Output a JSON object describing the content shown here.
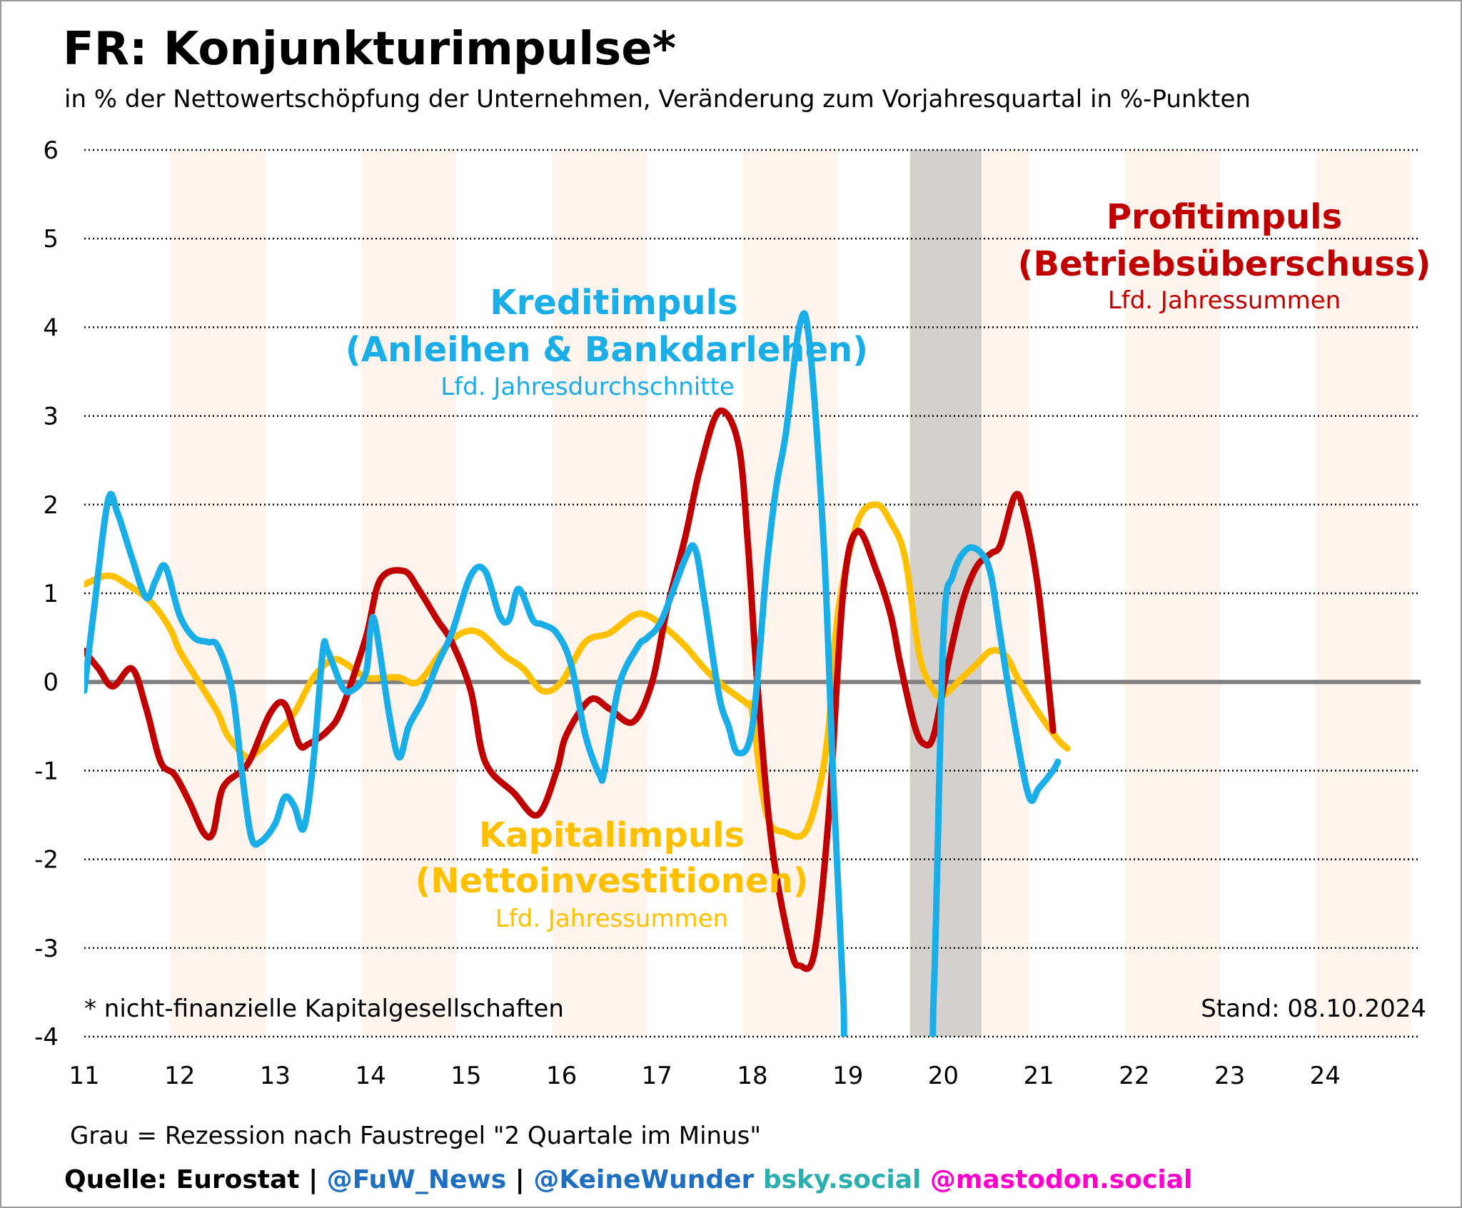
{
  "title": "FR: Konjunkturimpulse*",
  "subtitle": "in % der Nettowertschöpfung der Unternehmen, Veränderung zum Vorjahresquartal in %-Punkten",
  "footnote": "* nicht-finanzielle Kapitalgesellschaften",
  "stand": "Stand: 08.10.2024",
  "recession_note": "Grau = Rezession nach Faustregel \"2 Quartale im Minus\"",
  "source": {
    "quelle": "Quelle: Eurostat",
    "sep1": " | ",
    "fuw": "@FuW_News",
    "sep2": " | ",
    "keinewunder": "@KeineWunder",
    "bsky": " bsky.social",
    "mastodon": " @mastodon.social"
  },
  "colors": {
    "kredit": "#1AAEE8",
    "profit": "#C00000",
    "kapital": "#FFC000",
    "recession": "#D3D0CE",
    "band": "#FDF4EE",
    "zero": "#808080",
    "fuw": "#1F6FC0",
    "keinewunder": "#1F6FC0",
    "bsky": "#2AAEAE",
    "mastodon": "#FF00CC"
  },
  "labels": {
    "kredit": [
      "Kreditimpuls",
      "(Anleihen & Bankdarlehen)",
      "Lfd. Jahresdurchschnitte"
    ],
    "profit": [
      "Profitimpuls",
      "(Betriebsüberschuss)",
      "Lfd. Jahressummen"
    ],
    "kapital": [
      "Kapitalimpuls",
      "(Nettoinvestitionen)",
      "Lfd. Jahressummen"
    ]
  },
  "chart_data": {
    "type": "line",
    "xlim": [
      2011.0,
      2025.0
    ],
    "ylim": [
      -4,
      6
    ],
    "y_ticks": [
      6,
      5,
      4,
      3,
      2,
      1,
      0,
      -1,
      -2,
      -3,
      -4
    ],
    "x_ticks": [
      "11",
      "12",
      "13",
      "14",
      "15",
      "16",
      "17",
      "18",
      "19",
      "20",
      "21",
      "22",
      "23",
      "24"
    ],
    "grid": "horizontal dotted",
    "background_bands": [
      [
        2011.9,
        2012.9
      ],
      [
        2013.9,
        2014.9
      ],
      [
        2015.9,
        2016.9
      ],
      [
        2017.9,
        2018.9
      ],
      [
        2020.4,
        2020.9
      ],
      [
        2021.9,
        2022.9
      ],
      [
        2023.9,
        2024.9
      ]
    ],
    "recession": [
      2019.65,
      2020.4
    ],
    "series": [
      {
        "name": "Kreditimpuls",
        "key": "kredit",
        "points": [
          [
            2011.0,
            -0.1
          ],
          [
            2011.1,
            0.8
          ],
          [
            2011.25,
            2.05
          ],
          [
            2011.35,
            1.9
          ],
          [
            2011.5,
            1.4
          ],
          [
            2011.65,
            0.95
          ],
          [
            2011.75,
            1.15
          ],
          [
            2011.85,
            1.3
          ],
          [
            2012.0,
            0.75
          ],
          [
            2012.15,
            0.5
          ],
          [
            2012.3,
            0.45
          ],
          [
            2012.4,
            0.4
          ],
          [
            2012.55,
            -0.1
          ],
          [
            2012.65,
            -1.0
          ],
          [
            2012.75,
            -1.75
          ],
          [
            2012.85,
            -1.8
          ],
          [
            2013.0,
            -1.6
          ],
          [
            2013.1,
            -1.3
          ],
          [
            2013.2,
            -1.4
          ],
          [
            2013.3,
            -1.65
          ],
          [
            2013.4,
            -0.9
          ],
          [
            2013.5,
            0.35
          ],
          [
            2013.55,
            0.35
          ],
          [
            2013.7,
            -0.05
          ],
          [
            2013.8,
            -0.1
          ],
          [
            2013.95,
            0.1
          ],
          [
            2014.0,
            0.6
          ],
          [
            2014.05,
            0.65
          ],
          [
            2014.2,
            -0.4
          ],
          [
            2014.3,
            -0.85
          ],
          [
            2014.4,
            -0.5
          ],
          [
            2014.55,
            -0.2
          ],
          [
            2014.7,
            0.2
          ],
          [
            2014.85,
            0.55
          ],
          [
            2015.05,
            1.2
          ],
          [
            2015.2,
            1.25
          ],
          [
            2015.35,
            0.75
          ],
          [
            2015.45,
            0.7
          ],
          [
            2015.55,
            1.05
          ],
          [
            2015.7,
            0.7
          ],
          [
            2015.8,
            0.65
          ],
          [
            2015.95,
            0.55
          ],
          [
            2016.1,
            0.2
          ],
          [
            2016.25,
            -0.6
          ],
          [
            2016.4,
            -1.05
          ],
          [
            2016.45,
            -1.0
          ],
          [
            2016.6,
            -0.05
          ],
          [
            2016.8,
            0.4
          ],
          [
            2016.9,
            0.5
          ],
          [
            2017.05,
            0.7
          ],
          [
            2017.3,
            1.4
          ],
          [
            2017.4,
            1.5
          ],
          [
            2017.5,
            0.9
          ],
          [
            2017.65,
            -0.15
          ],
          [
            2017.75,
            -0.5
          ],
          [
            2017.85,
            -0.8
          ],
          [
            2018.0,
            -0.5
          ],
          [
            2018.15,
            1.3
          ],
          [
            2018.25,
            2.2
          ],
          [
            2018.35,
            2.8
          ],
          [
            2018.5,
            4.05
          ],
          [
            2018.6,
            3.8
          ],
          [
            2018.75,
            1.5
          ],
          [
            2018.85,
            -1.2
          ],
          [
            2018.95,
            -3.5
          ],
          [
            2019.05,
            -5.0
          ],
          [
            2019.8,
            -5.0
          ],
          [
            2019.9,
            -3.5
          ],
          [
            2020.0,
            0.5
          ],
          [
            2020.1,
            1.2
          ],
          [
            2020.25,
            1.5
          ],
          [
            2020.4,
            1.45
          ],
          [
            2020.5,
            1.2
          ],
          [
            2020.6,
            0.5
          ],
          [
            2020.75,
            -0.5
          ],
          [
            2020.9,
            -1.3
          ],
          [
            2021.0,
            -1.2
          ],
          [
            2021.15,
            -1.0
          ],
          [
            2021.2,
            -0.9
          ]
        ]
      },
      {
        "name": "Profitimpuls",
        "key": "profit",
        "points": [
          [
            2011.0,
            0.35
          ],
          [
            2011.15,
            0.15
          ],
          [
            2011.3,
            -0.05
          ],
          [
            2011.5,
            0.15
          ],
          [
            2011.65,
            -0.3
          ],
          [
            2011.8,
            -0.9
          ],
          [
            2011.95,
            -1.05
          ],
          [
            2012.1,
            -1.35
          ],
          [
            2012.25,
            -1.7
          ],
          [
            2012.35,
            -1.7
          ],
          [
            2012.45,
            -1.2
          ],
          [
            2012.65,
            -1.0
          ],
          [
            2012.75,
            -0.85
          ],
          [
            2012.95,
            -0.35
          ],
          [
            2013.1,
            -0.25
          ],
          [
            2013.25,
            -0.7
          ],
          [
            2013.35,
            -0.7
          ],
          [
            2013.55,
            -0.55
          ],
          [
            2013.7,
            -0.3
          ],
          [
            2013.95,
            0.5
          ],
          [
            2014.1,
            1.15
          ],
          [
            2014.35,
            1.25
          ],
          [
            2014.5,
            1.05
          ],
          [
            2014.7,
            0.7
          ],
          [
            2014.85,
            0.45
          ],
          [
            2015.05,
            -0.1
          ],
          [
            2015.2,
            -0.9
          ],
          [
            2015.5,
            -1.25
          ],
          [
            2015.75,
            -1.5
          ],
          [
            2015.95,
            -1.0
          ],
          [
            2016.05,
            -0.6
          ],
          [
            2016.3,
            -0.2
          ],
          [
            2016.5,
            -0.3
          ],
          [
            2016.75,
            -0.45
          ],
          [
            2016.95,
            0.0
          ],
          [
            2017.1,
            0.8
          ],
          [
            2017.3,
            1.65
          ],
          [
            2017.45,
            2.4
          ],
          [
            2017.65,
            3.05
          ],
          [
            2017.85,
            2.7
          ],
          [
            2017.95,
            1.6
          ],
          [
            2018.05,
            0.0
          ],
          [
            2018.2,
            -1.8
          ],
          [
            2018.4,
            -3.0
          ],
          [
            2018.5,
            -3.2
          ],
          [
            2018.65,
            -3.05
          ],
          [
            2018.8,
            -1.5
          ],
          [
            2018.95,
            1.0
          ],
          [
            2019.1,
            1.7
          ],
          [
            2019.3,
            1.25
          ],
          [
            2019.45,
            0.75
          ],
          [
            2019.55,
            0.2
          ],
          [
            2019.7,
            -0.5
          ],
          [
            2019.8,
            -0.7
          ],
          [
            2019.9,
            -0.6
          ],
          [
            2020.05,
            0.2
          ],
          [
            2020.2,
            0.9
          ],
          [
            2020.35,
            1.3
          ],
          [
            2020.5,
            1.45
          ],
          [
            2020.6,
            1.55
          ],
          [
            2020.75,
            2.1
          ],
          [
            2020.85,
            1.9
          ],
          [
            2021.0,
            1.0
          ],
          [
            2021.15,
            -0.55
          ]
        ]
      },
      {
        "name": "Kapitalimpuls",
        "key": "kapital",
        "points": [
          [
            2011.0,
            1.1
          ],
          [
            2011.25,
            1.2
          ],
          [
            2011.45,
            1.1
          ],
          [
            2011.7,
            0.9
          ],
          [
            2011.9,
            0.6
          ],
          [
            2012.0,
            0.35
          ],
          [
            2012.2,
            0.0
          ],
          [
            2012.4,
            -0.35
          ],
          [
            2012.5,
            -0.6
          ],
          [
            2012.7,
            -0.85
          ],
          [
            2012.8,
            -0.8
          ],
          [
            2013.0,
            -0.6
          ],
          [
            2013.2,
            -0.35
          ],
          [
            2013.4,
            0.05
          ],
          [
            2013.6,
            0.25
          ],
          [
            2013.75,
            0.2
          ],
          [
            2013.95,
            0.05
          ],
          [
            2014.15,
            0.05
          ],
          [
            2014.3,
            0.05
          ],
          [
            2014.5,
            0.0
          ],
          [
            2014.75,
            0.35
          ],
          [
            2014.95,
            0.55
          ],
          [
            2015.15,
            0.55
          ],
          [
            2015.4,
            0.3
          ],
          [
            2015.6,
            0.15
          ],
          [
            2015.8,
            -0.1
          ],
          [
            2016.0,
            0.0
          ],
          [
            2016.25,
            0.45
          ],
          [
            2016.5,
            0.55
          ],
          [
            2016.75,
            0.75
          ],
          [
            2016.9,
            0.75
          ],
          [
            2017.1,
            0.6
          ],
          [
            2017.3,
            0.4
          ],
          [
            2017.5,
            0.15
          ],
          [
            2017.7,
            -0.05
          ],
          [
            2017.95,
            -0.25
          ],
          [
            2018.0,
            -0.35
          ],
          [
            2018.15,
            -1.5
          ],
          [
            2018.35,
            -1.7
          ],
          [
            2018.55,
            -1.7
          ],
          [
            2018.7,
            -1.2
          ],
          [
            2018.8,
            -0.5
          ],
          [
            2018.9,
            0.8
          ],
          [
            2019.1,
            1.8
          ],
          [
            2019.3,
            2.0
          ],
          [
            2019.45,
            1.8
          ],
          [
            2019.6,
            1.4
          ],
          [
            2019.75,
            0.3
          ],
          [
            2019.9,
            -0.1
          ],
          [
            2020.0,
            -0.15
          ],
          [
            2020.2,
            0.05
          ],
          [
            2020.35,
            0.2
          ],
          [
            2020.5,
            0.35
          ],
          [
            2020.65,
            0.3
          ],
          [
            2020.8,
            0.0
          ],
          [
            2021.0,
            -0.35
          ],
          [
            2021.2,
            -0.65
          ],
          [
            2021.3,
            -0.75
          ]
        ]
      }
    ]
  }
}
